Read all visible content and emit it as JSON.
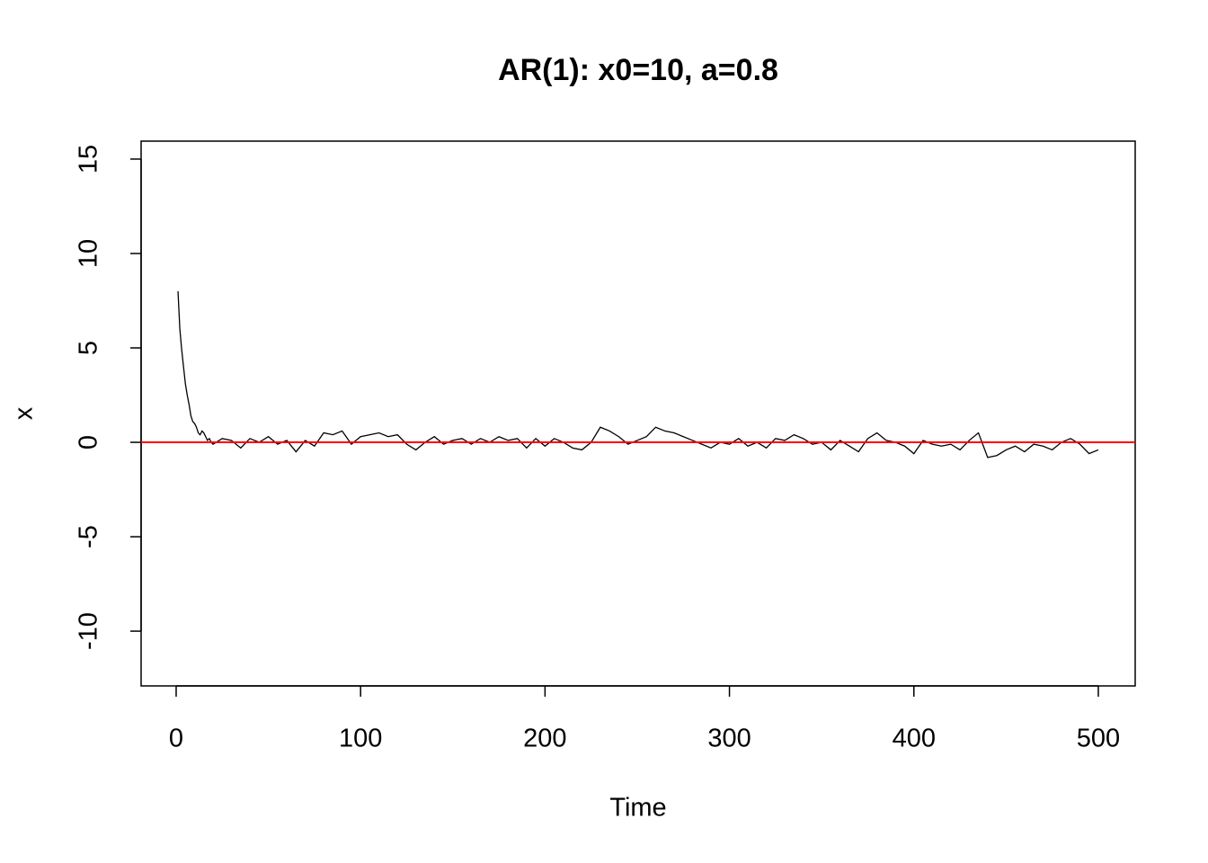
{
  "chart_data": {
    "type": "line",
    "title": "AR(1): x0=10, a=0.8",
    "xlabel": "Time",
    "ylabel": "x",
    "x": [
      1,
      2,
      3,
      4,
      5,
      6,
      7,
      8,
      9,
      10,
      11,
      12,
      13,
      14,
      15,
      16,
      17,
      18,
      19,
      20,
      25,
      30,
      35,
      40,
      45,
      50,
      55,
      60,
      65,
      70,
      75,
      80,
      85,
      90,
      95,
      100,
      105,
      110,
      115,
      120,
      125,
      130,
      135,
      140,
      145,
      150,
      155,
      160,
      165,
      170,
      175,
      180,
      185,
      190,
      195,
      200,
      205,
      210,
      215,
      220,
      225,
      230,
      235,
      240,
      245,
      250,
      255,
      260,
      265,
      270,
      275,
      280,
      285,
      290,
      295,
      300,
      305,
      310,
      315,
      320,
      325,
      330,
      335,
      340,
      345,
      350,
      355,
      360,
      365,
      370,
      375,
      380,
      385,
      390,
      395,
      400,
      405,
      410,
      415,
      420,
      425,
      430,
      435,
      440,
      445,
      450,
      455,
      460,
      465,
      470,
      475,
      480,
      485,
      490,
      495,
      500
    ],
    "series": [
      {
        "name": "x",
        "color": "#000000",
        "values": [
          8,
          6,
          4.9,
          4,
          3.1,
          2.5,
          2,
          1.4,
          1.1,
          1,
          0.8,
          0.5,
          0.4,
          0.6,
          0.5,
          0.3,
          0.1,
          0.2,
          0,
          -0.1,
          0.2,
          0.1,
          -0.3,
          0.2,
          0,
          0.3,
          -0.1,
          0.1,
          -0.5,
          0.1,
          -0.2,
          0.5,
          0.4,
          0.6,
          -0.1,
          0.3,
          0.4,
          0.5,
          0.3,
          0.4,
          -0.1,
          -0.4,
          0,
          0.3,
          -0.1,
          0.1,
          0.2,
          -0.1,
          0.2,
          0,
          0.3,
          0.1,
          0.2,
          -0.3,
          0.2,
          -0.2,
          0.2,
          0,
          -0.3,
          -0.4,
          0,
          0.8,
          0.6,
          0.3,
          -0.1,
          0.1,
          0.3,
          0.8,
          0.6,
          0.5,
          0.3,
          0.1,
          -0.1,
          -0.3,
          0,
          -0.1,
          0.2,
          -0.2,
          0,
          -0.3,
          0.2,
          0.1,
          0.4,
          0.2,
          -0.1,
          0,
          -0.4,
          0.1,
          -0.2,
          -0.5,
          0.2,
          0.5,
          0.1,
          0,
          -0.2,
          -0.6,
          0.1,
          -0.1,
          -0.2,
          -0.1,
          -0.4,
          0.1,
          0.5,
          -0.8,
          -0.7,
          -0.4,
          -0.2,
          -0.5,
          -0.1,
          -0.2,
          -0.4,
          0,
          0.2,
          -0.1,
          -0.6,
          -0.4
        ]
      }
    ],
    "hline": {
      "value": 0,
      "color": "#ff0000"
    },
    "xlim": [
      -19,
      520
    ],
    "xticks": [
      0,
      100,
      200,
      300,
      400,
      500
    ],
    "ylim": [
      -12.9,
      15.95
    ],
    "yticks": [
      -10,
      -5,
      0,
      5,
      10,
      15
    ]
  }
}
